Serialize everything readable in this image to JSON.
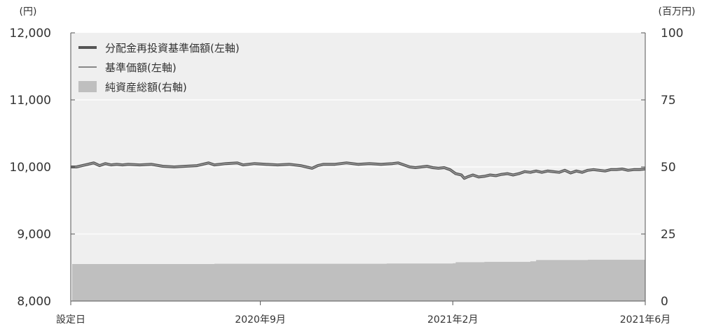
{
  "chart_data": {
    "type": "line",
    "left_axis": {
      "unit": "(円)",
      "ticks": [
        "12,000",
        "11,000",
        "10,000",
        "9,000",
        "8,000"
      ],
      "ylim": [
        8000,
        12000
      ],
      "values": [
        12000,
        11000,
        10000,
        9000,
        8000
      ]
    },
    "right_axis": {
      "unit": "(百万円)",
      "ticks": [
        "100",
        "75",
        "50",
        "25",
        "0"
      ],
      "ylim": [
        0,
        100
      ],
      "values": [
        100,
        75,
        50,
        25,
        0
      ]
    },
    "x_ticks": [
      {
        "label": "設定日",
        "t": 0.0
      },
      {
        "label": "2020年9月",
        "t": 0.33
      },
      {
        "label": "2021年2月",
        "t": 0.665
      },
      {
        "label": "2021年6月",
        "t": 1.0
      }
    ],
    "legend": [
      {
        "label": "分配金再投資基準価額(左軸)",
        "kind": "thick-line",
        "color": "#555555"
      },
      {
        "label": "基準価額(左軸)",
        "kind": "thin-line",
        "color": "#888888"
      },
      {
        "label": "純資産総額(右軸)",
        "kind": "area",
        "color": "#bfbfbf"
      }
    ],
    "grid": true,
    "colors": {
      "background": "#efefef",
      "area": "#bfbfbf",
      "line_dark": "#555555",
      "line_light": "#999999",
      "grid": "#ffffff"
    },
    "series": [
      {
        "name": "分配金再投資基準価額(左軸)",
        "axis": "left",
        "points": [
          [
            0.0,
            10000
          ],
          [
            0.01,
            10000
          ],
          [
            0.02,
            10020
          ],
          [
            0.03,
            10040
          ],
          [
            0.04,
            10060
          ],
          [
            0.05,
            10020
          ],
          [
            0.06,
            10050
          ],
          [
            0.07,
            10030
          ],
          [
            0.08,
            10040
          ],
          [
            0.09,
            10030
          ],
          [
            0.1,
            10040
          ],
          [
            0.12,
            10030
          ],
          [
            0.14,
            10040
          ],
          [
            0.16,
            10010
          ],
          [
            0.18,
            10000
          ],
          [
            0.2,
            10010
          ],
          [
            0.22,
            10020
          ],
          [
            0.24,
            10060
          ],
          [
            0.25,
            10030
          ],
          [
            0.27,
            10050
          ],
          [
            0.29,
            10060
          ],
          [
            0.3,
            10030
          ],
          [
            0.32,
            10050
          ],
          [
            0.34,
            10040
          ],
          [
            0.36,
            10030
          ],
          [
            0.38,
            10040
          ],
          [
            0.4,
            10020
          ],
          [
            0.41,
            10000
          ],
          [
            0.42,
            9980
          ],
          [
            0.43,
            10020
          ],
          [
            0.44,
            10040
          ],
          [
            0.46,
            10040
          ],
          [
            0.48,
            10060
          ],
          [
            0.5,
            10040
          ],
          [
            0.52,
            10050
          ],
          [
            0.54,
            10040
          ],
          [
            0.56,
            10050
          ],
          [
            0.57,
            10060
          ],
          [
            0.58,
            10030
          ],
          [
            0.59,
            10000
          ],
          [
            0.6,
            9990
          ],
          [
            0.61,
            10000
          ],
          [
            0.62,
            10010
          ],
          [
            0.63,
            9990
          ],
          [
            0.64,
            9980
          ],
          [
            0.65,
            9990
          ],
          [
            0.66,
            9960
          ],
          [
            0.67,
            9900
          ],
          [
            0.68,
            9880
          ],
          [
            0.685,
            9830
          ],
          [
            0.69,
            9850
          ],
          [
            0.7,
            9880
          ],
          [
            0.71,
            9850
          ],
          [
            0.72,
            9860
          ],
          [
            0.73,
            9880
          ],
          [
            0.74,
            9870
          ],
          [
            0.75,
            9890
          ],
          [
            0.76,
            9900
          ],
          [
            0.77,
            9880
          ],
          [
            0.78,
            9900
          ],
          [
            0.79,
            9930
          ],
          [
            0.8,
            9920
          ],
          [
            0.81,
            9940
          ],
          [
            0.82,
            9920
          ],
          [
            0.83,
            9940
          ],
          [
            0.84,
            9930
          ],
          [
            0.85,
            9920
          ],
          [
            0.86,
            9950
          ],
          [
            0.87,
            9910
          ],
          [
            0.88,
            9940
          ],
          [
            0.89,
            9920
          ],
          [
            0.9,
            9950
          ],
          [
            0.91,
            9960
          ],
          [
            0.92,
            9950
          ],
          [
            0.93,
            9940
          ],
          [
            0.94,
            9960
          ],
          [
            0.95,
            9960
          ],
          [
            0.96,
            9970
          ],
          [
            0.97,
            9950
          ],
          [
            0.98,
            9960
          ],
          [
            0.99,
            9960
          ],
          [
            1.0,
            9970
          ]
        ]
      },
      {
        "name": "純資産総額(右軸)",
        "axis": "right",
        "points": [
          [
            0.0,
            13.8
          ],
          [
            0.15,
            13.8
          ],
          [
            0.25,
            13.9
          ],
          [
            0.4,
            13.9
          ],
          [
            0.55,
            14.0
          ],
          [
            0.665,
            14.1
          ],
          [
            0.67,
            14.5
          ],
          [
            0.72,
            14.6
          ],
          [
            0.8,
            14.8
          ],
          [
            0.81,
            15.3
          ],
          [
            0.9,
            15.4
          ],
          [
            1.0,
            15.5
          ]
        ]
      }
    ]
  }
}
